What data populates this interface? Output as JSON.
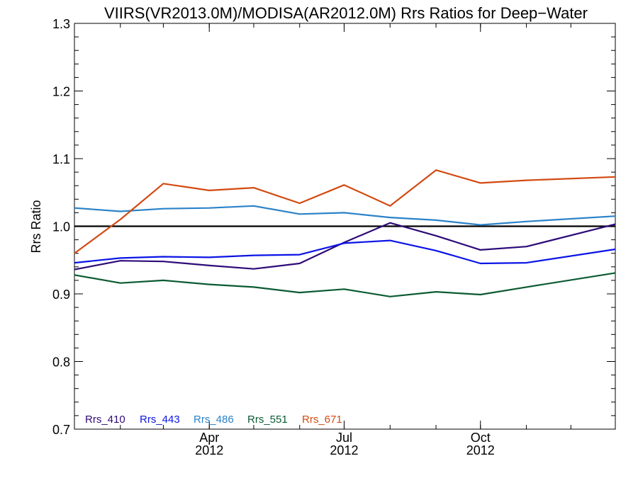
{
  "chart_data": {
    "type": "line",
    "title": "VIIRS(VR2013.0M)/MODISA(AR2012.0M)  Rrs Ratios for Deep−Water",
    "xlabel": "",
    "ylabel": "Rrs Ratio",
    "ylim": [
      0.7,
      1.3
    ],
    "yticks": [
      "0.7",
      "0.8",
      "0.9",
      "1.0",
      "1.1",
      "1.2",
      "1.3"
    ],
    "xlim": [
      "2012-01-01",
      "2012-12-31"
    ],
    "xticks": [
      {
        "date": "2012-04-01",
        "month": "Apr",
        "year": "2012"
      },
      {
        "date": "2012-07-01",
        "month": "Jul",
        "year": "2012"
      },
      {
        "date": "2012-10-01",
        "month": "Oct",
        "year": "2012"
      }
    ],
    "reference_line": 1.0,
    "legend_placement": "bottom-left",
    "x": [
      "2012-01-01",
      "2012-02-01",
      "2012-03-01",
      "2012-04-01",
      "2012-05-01",
      "2012-06-01",
      "2012-07-01",
      "2012-08-01",
      "2012-09-01",
      "2012-10-01",
      "2012-11-01",
      "2012-12-31"
    ],
    "series": [
      {
        "name": "Rrs_410",
        "color": "#2e0a78",
        "values": [
          0.936,
          0.949,
          0.948,
          0.942,
          0.937,
          0.945,
          0.976,
          1.005,
          0.986,
          0.965,
          0.97,
          1.003
        ]
      },
      {
        "name": "Rrs_443",
        "color": "#0a14e6",
        "values": [
          0.946,
          0.953,
          0.955,
          0.954,
          0.957,
          0.958,
          0.975,
          0.979,
          0.964,
          0.945,
          0.946,
          0.966
        ]
      },
      {
        "name": "Rrs_486",
        "color": "#2a82c8",
        "values": [
          1.027,
          1.022,
          1.026,
          1.027,
          1.03,
          1.018,
          1.02,
          1.013,
          1.009,
          1.002,
          1.007,
          1.015
        ]
      },
      {
        "name": "Rrs_551",
        "color": "#0b5a32",
        "values": [
          0.928,
          0.916,
          0.92,
          0.914,
          0.91,
          0.902,
          0.907,
          0.896,
          0.903,
          0.899,
          0.91,
          0.931
        ]
      },
      {
        "name": "Rrs_671",
        "color": "#d24a12",
        "values": [
          0.96,
          1.01,
          1.063,
          1.053,
          1.057,
          1.034,
          1.061,
          1.03,
          1.083,
          1.064,
          1.068,
          1.073
        ]
      }
    ]
  }
}
